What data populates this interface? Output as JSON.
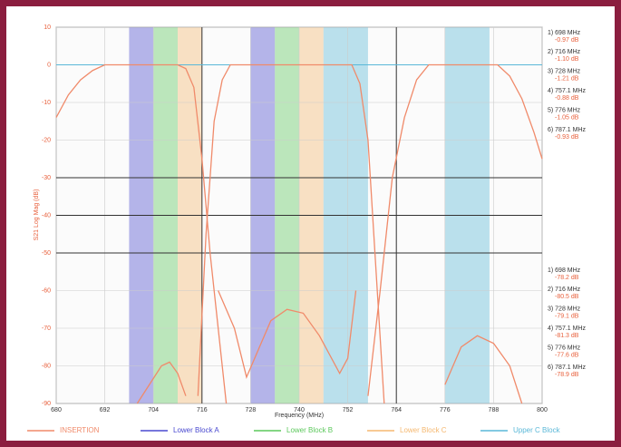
{
  "chart_data": {
    "type": "line",
    "ylabel": "S21 Log Mag (dB)",
    "xlabel": "Frequency (MHz)",
    "xlim": [
      680,
      800
    ],
    "xticks": [
      680,
      692,
      704,
      716,
      728,
      740,
      752,
      764,
      776,
      788,
      800
    ],
    "ylim": [
      -90,
      10
    ],
    "yticks": [
      10,
      0,
      -10,
      -20,
      -30,
      -40,
      -50,
      -60,
      -70,
      -80,
      -90
    ],
    "grid": true,
    "limit_lines": [
      -30,
      -40,
      -50
    ],
    "vlines": [
      716,
      764
    ],
    "reference_line": 0,
    "series": [
      {
        "name": "INSERTION",
        "color": "#f08a6a",
        "x": [
          680,
          683,
          686,
          689,
          692,
          710,
          712,
          714,
          716,
          718,
          720,
          722,
          null,
          715,
          717,
          719,
          721,
          723,
          753,
          755,
          757,
          759,
          761,
          null,
          757,
          760,
          763,
          766,
          769,
          772,
          789,
          792,
          795,
          798,
          800,
          null,
          700,
          703,
          706,
          708,
          710,
          712,
          null,
          720,
          724,
          727,
          729,
          733,
          737,
          741,
          745,
          750,
          752,
          754,
          null,
          776,
          780,
          784,
          788,
          792,
          795
        ],
        "values": [
          -14,
          -8,
          -4,
          -1.5,
          0,
          0,
          -1,
          -6,
          -25,
          -50,
          -70,
          -90,
          null,
          -88,
          -45,
          -15,
          -4,
          0,
          0,
          -5,
          -20,
          -55,
          -90,
          null,
          -88,
          -60,
          -30,
          -14,
          -4,
          0,
          0,
          -3,
          -9,
          -18,
          -25,
          null,
          -90,
          -85,
          -80,
          -79,
          -82,
          -88,
          null,
          -60,
          -70,
          -83,
          -78,
          -68,
          -65,
          -66,
          -72,
          -82,
          -78,
          -60,
          null,
          -85,
          -75,
          -72,
          -74,
          -80,
          -90
        ]
      }
    ],
    "bands": [
      {
        "name": "Lower Block A",
        "color": "#4a4ad0",
        "ranges": [
          [
            698,
            704
          ],
          [
            728,
            734
          ]
        ]
      },
      {
        "name": "Lower Block B",
        "color": "#5cc85c",
        "ranges": [
          [
            704,
            710
          ],
          [
            734,
            740
          ]
        ]
      },
      {
        "name": "Lower Block C",
        "color": "#f5b870",
        "ranges": [
          [
            710,
            716
          ],
          [
            740,
            746
          ]
        ]
      },
      {
        "name": "Upper C Block",
        "color": "#5ab8d8",
        "ranges": [
          [
            746,
            757
          ],
          [
            776,
            787
          ]
        ]
      }
    ],
    "markers_top": [
      {
        "label": "1) 698 MHz",
        "value": "-0.97 dB"
      },
      {
        "label": "2) 716 MHz",
        "value": "-1.10 dB"
      },
      {
        "label": "3) 728 MHz",
        "value": "-1.21 dB"
      },
      {
        "label": "4) 757.1 MHz",
        "value": "-0.88 dB"
      },
      {
        "label": "5) 776 MHz",
        "value": "-1.05 dB"
      },
      {
        "label": "6) 787.1 MHz",
        "value": "-0.93 dB"
      }
    ],
    "markers_bottom": [
      {
        "label": "1) 698 MHz",
        "value": "-78.2 dB"
      },
      {
        "label": "2) 716 MHz",
        "value": "-80.5 dB"
      },
      {
        "label": "3) 728 MHz",
        "value": "-79.1 dB"
      },
      {
        "label": "4) 757.1 MHz",
        "value": "-81.3 dB"
      },
      {
        "label": "5) 776 MHz",
        "value": "-77.6 dB"
      },
      {
        "label": "6) 787.1 MHz",
        "value": "-78.9 dB"
      }
    ]
  }
}
